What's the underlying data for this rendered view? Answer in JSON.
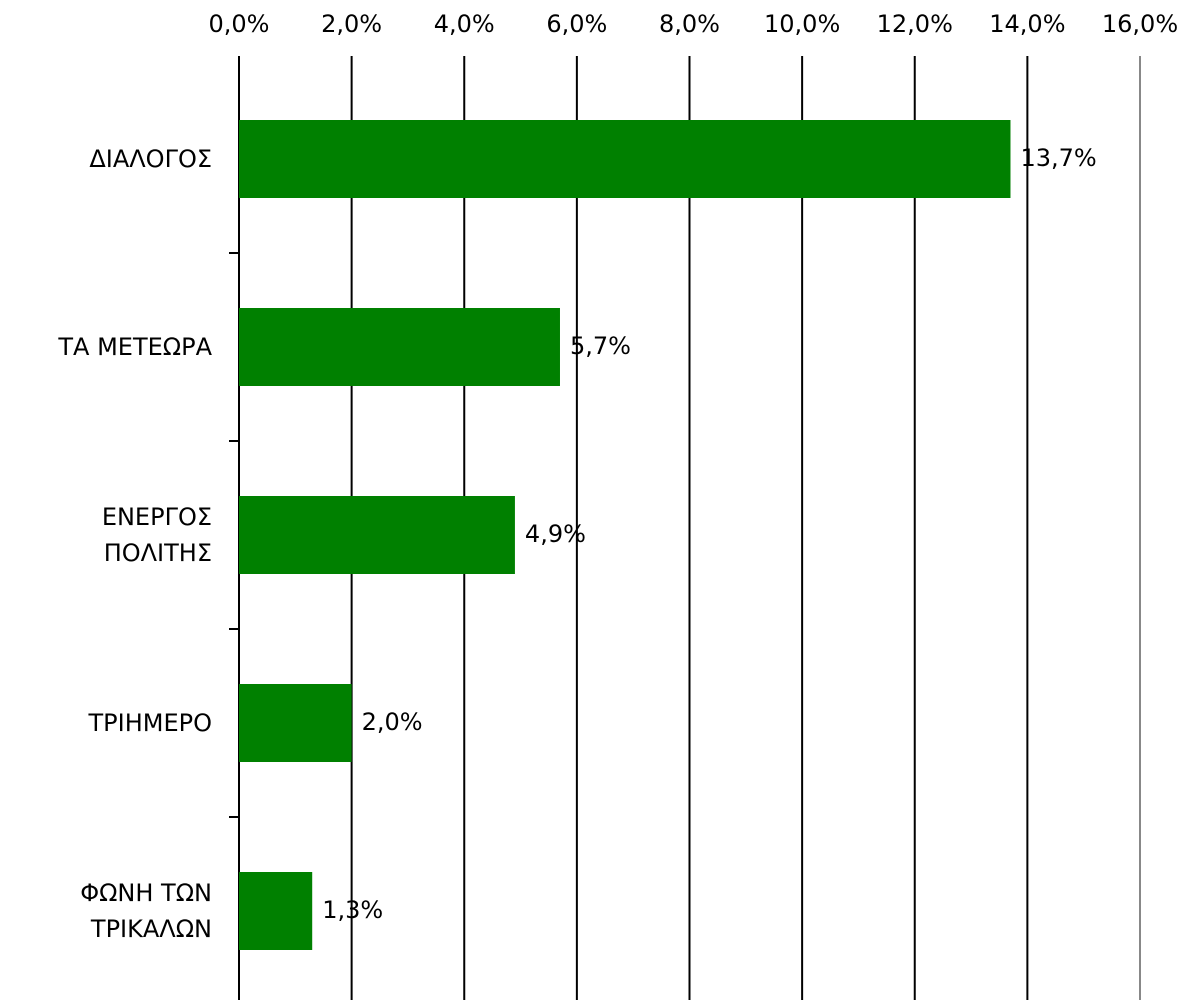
{
  "chart_data": {
    "type": "bar",
    "orientation": "horizontal",
    "categories": [
      "ΔΙΑΛΟΓΟΣ",
      "ΤΑ ΜΕΤΕΩΡΑ",
      "ΕΝΕΡΓΟΣ ΠΟΛΙΤΗΣ",
      "ΤΡΙΗΜΕΡΟ",
      "ΦΩΝΗ ΤΩΝ ΤΡΙΚΑΛΩΝ"
    ],
    "values": [
      13.7,
      5.7,
      4.9,
      2.0,
      1.3
    ],
    "value_labels": [
      "13,7%",
      "5,7%",
      "4,9%",
      "2,0%",
      "1,3%"
    ],
    "color": "#008000",
    "xlim": [
      0,
      16
    ],
    "xticks": [
      {
        "value": 0,
        "label": "0,0%"
      },
      {
        "value": 2,
        "label": "2,0%"
      },
      {
        "value": 4,
        "label": "4,0%"
      },
      {
        "value": 6,
        "label": "6,0%"
      },
      {
        "value": 8,
        "label": "8,0%"
      },
      {
        "value": 10,
        "label": "10,0%"
      },
      {
        "value": 12,
        "label": "12,0%"
      },
      {
        "value": 14,
        "label": "14,0%"
      },
      {
        "value": 16,
        "label": "16,0%"
      }
    ],
    "grid": true
  }
}
